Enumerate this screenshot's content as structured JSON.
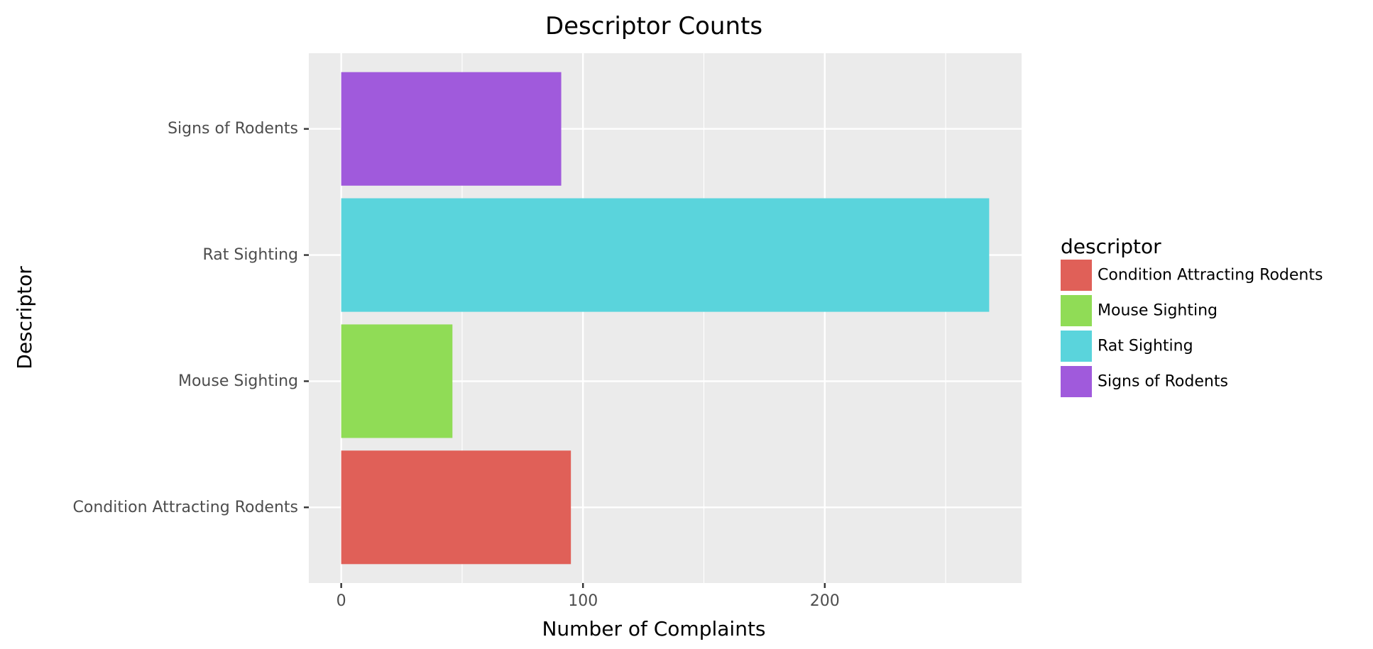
{
  "chart_data": {
    "type": "bar",
    "orientation": "horizontal",
    "title": "Descriptor Counts",
    "xlabel": "Number of Complaints",
    "ylabel": "Descriptor",
    "categories": [
      "Condition Attracting Rodents",
      "Mouse Sighting",
      "Rat Sighting",
      "Signs of Rodents"
    ],
    "values": [
      95,
      46,
      268,
      91
    ],
    "colors": [
      "#e06058",
      "#90dc56",
      "#5ad4dc",
      "#a05adc"
    ],
    "xlim": [
      -13.4,
      281.4
    ],
    "xticks": [
      0,
      100,
      200
    ],
    "grid": true,
    "legend": {
      "title": "descriptor",
      "placement": "right",
      "entries": [
        "Condition Attracting Rodents",
        "Mouse Sighting",
        "Rat Sighting",
        "Signs of Rodents"
      ]
    }
  }
}
